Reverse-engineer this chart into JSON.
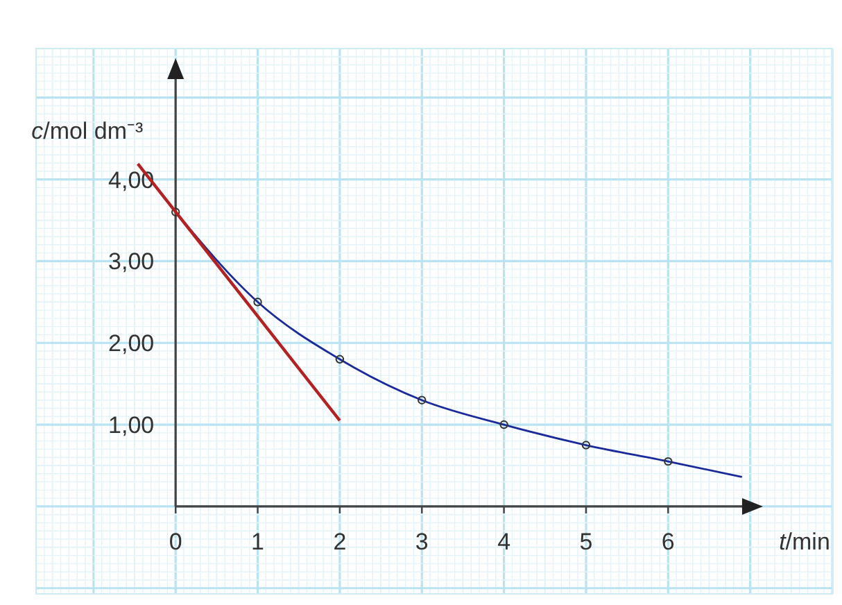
{
  "chart_data": {
    "type": "line",
    "xlabel": "t/min",
    "ylabel": "c/mol dm⁻³",
    "xlim": [
      -1.7,
      8.0
    ],
    "ylim": [
      -1.07,
      5.6
    ],
    "xticks": [
      0,
      1,
      2,
      3,
      4,
      5,
      6
    ],
    "yticks": [
      {
        "value": 1,
        "label": "1,00"
      },
      {
        "value": 2,
        "label": "2,00"
      },
      {
        "value": 3,
        "label": "3,00"
      },
      {
        "value": 4,
        "label": "4,00"
      }
    ],
    "grid": true,
    "series": [
      {
        "color": "#1a2a9a",
        "marker": "none",
        "x": [
          0,
          1,
          2,
          3,
          4,
          5,
          6,
          6.9
        ],
        "values": [
          3.6,
          2.5,
          1.8,
          1.3,
          1.0,
          0.75,
          0.55,
          0.36
        ]
      },
      {
        "type": "scatter",
        "color": "#333333",
        "marker": "circle",
        "x": [
          0,
          1,
          2,
          3,
          4,
          5,
          6
        ],
        "values": [
          3.6,
          2.5,
          1.8,
          1.3,
          1.0,
          0.75,
          0.55
        ]
      },
      {
        "type": "line",
        "color": "#b22222",
        "marker": "none",
        "x": [
          -0.46,
          2
        ],
        "values": [
          4.19,
          1.05
        ]
      }
    ]
  }
}
